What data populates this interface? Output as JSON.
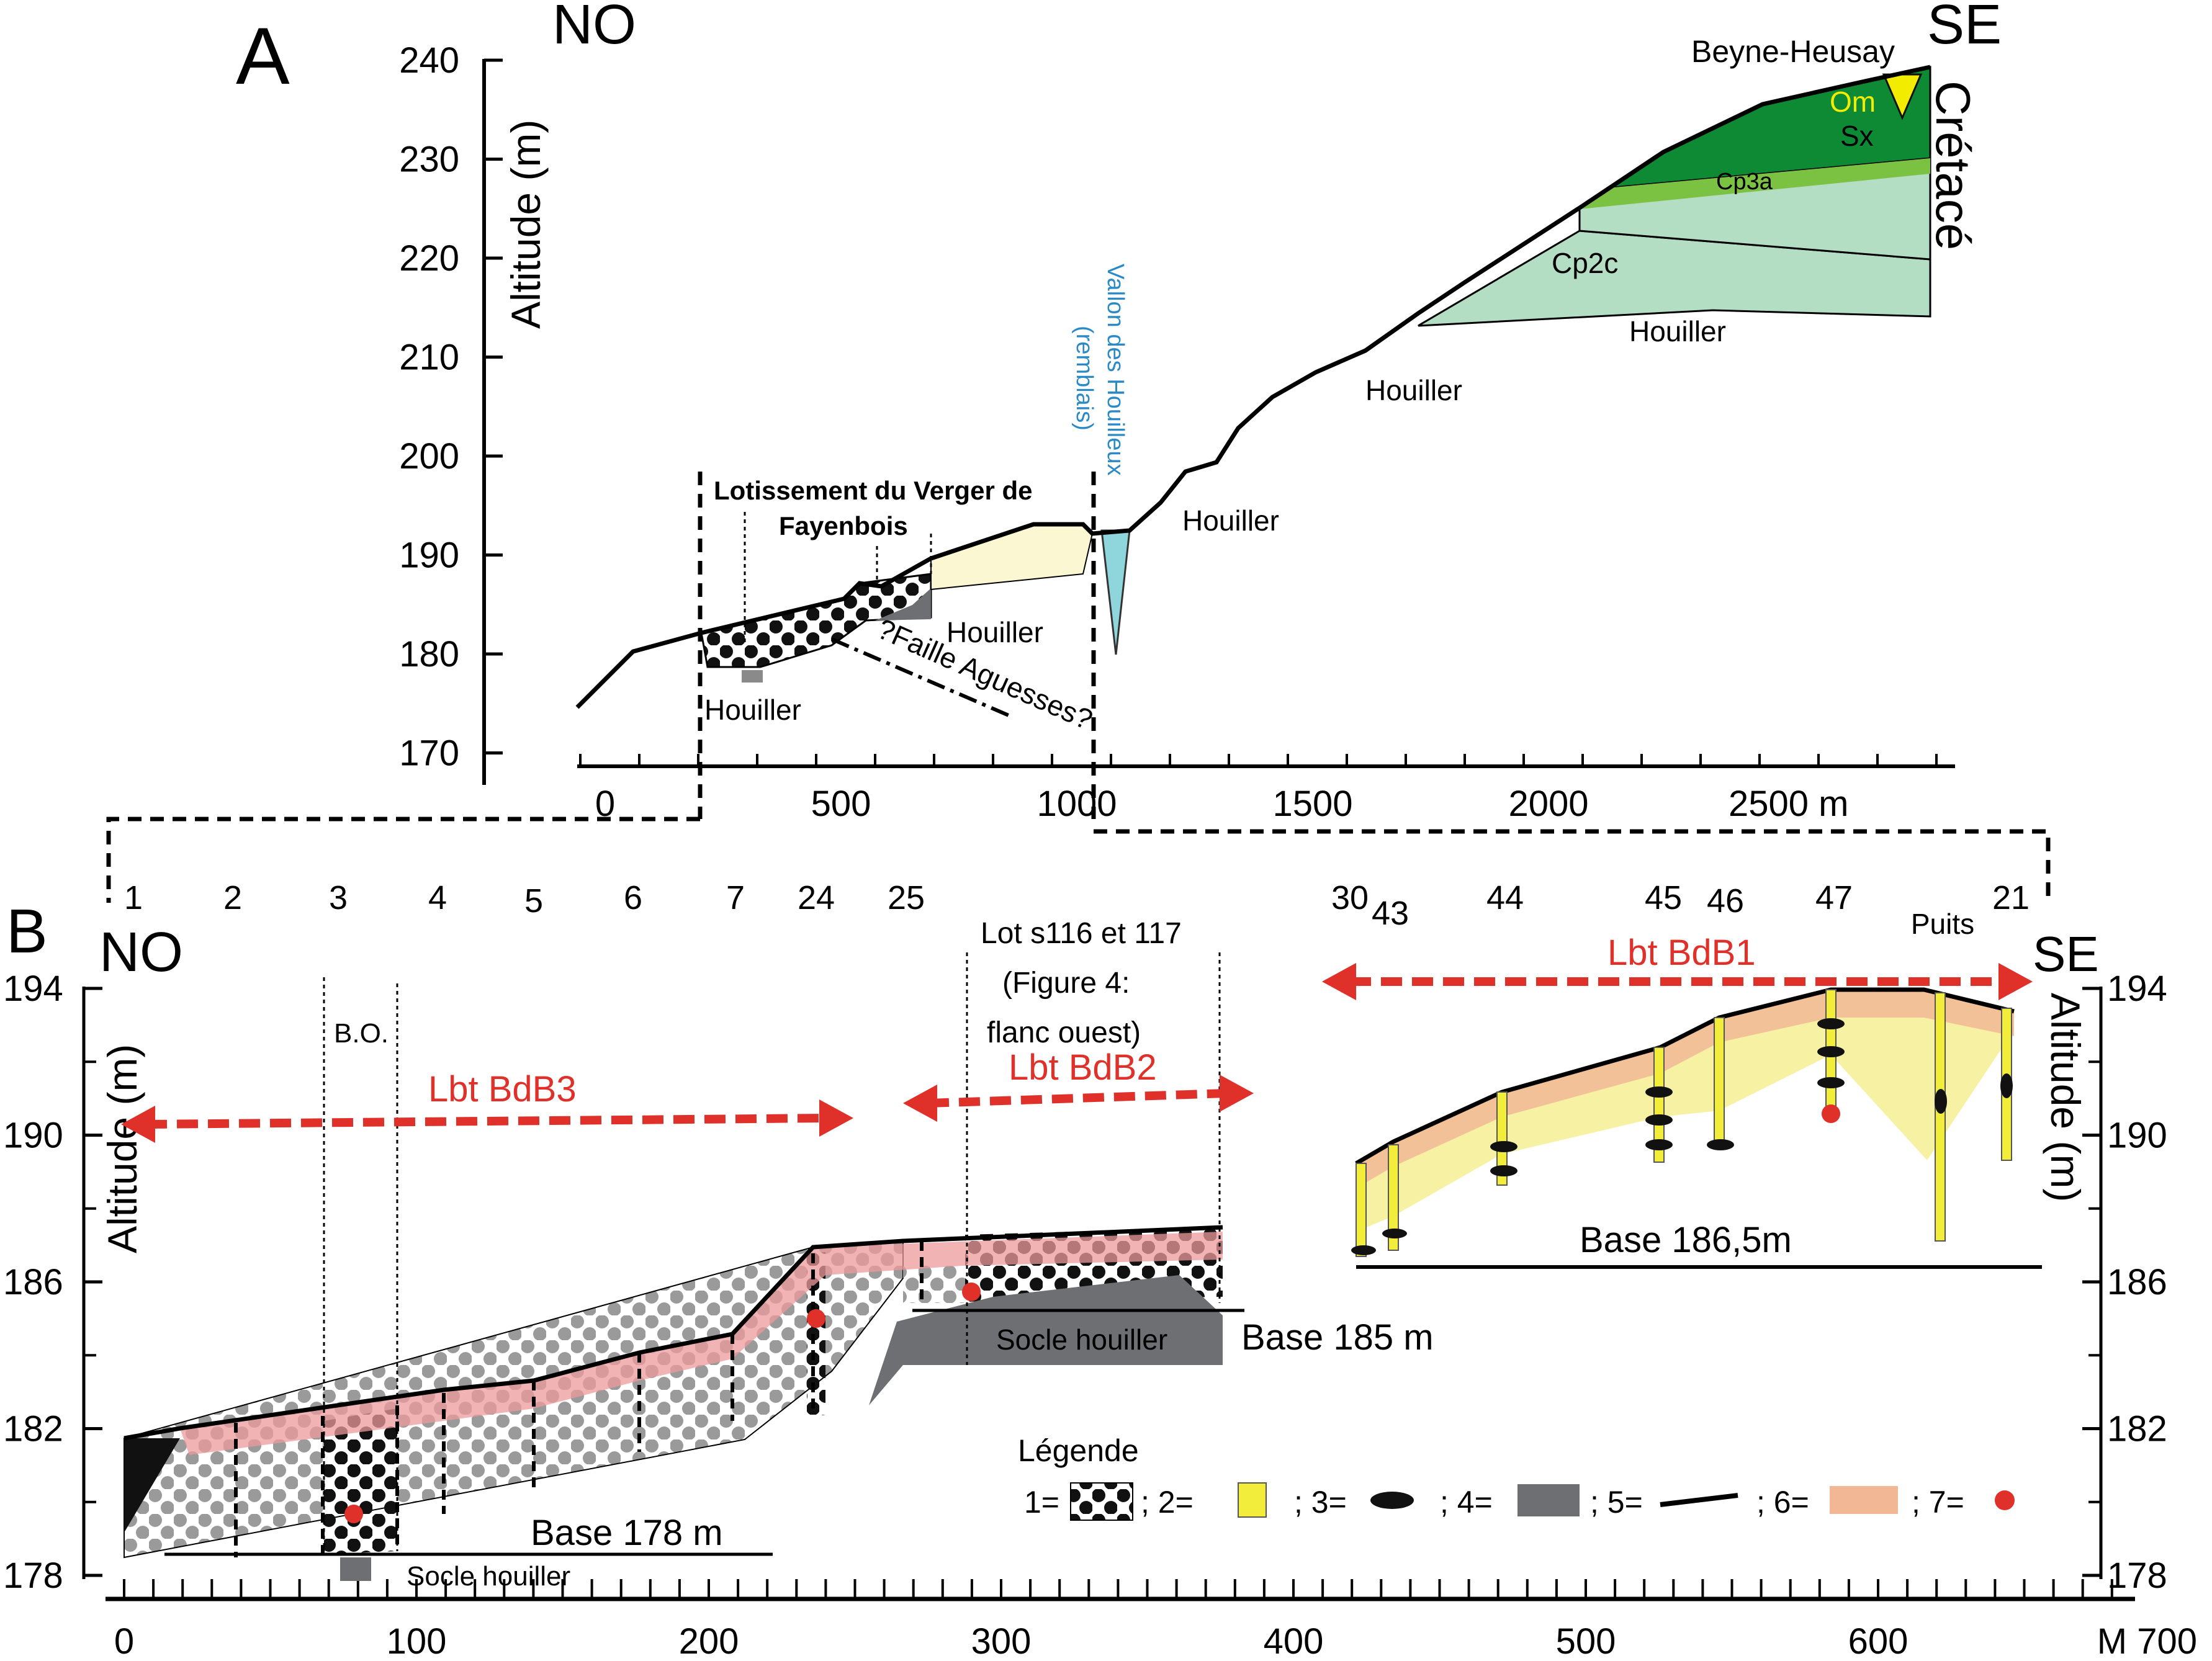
{
  "panel_a": {
    "letter": "A",
    "dir_left": "NO",
    "dir_right": "SE",
    "ylabel": "Altitude (m)",
    "y_ticks": [
      "240",
      "230",
      "220",
      "210",
      "200",
      "190",
      "180",
      "170"
    ],
    "x_ticks": [
      "0",
      "500",
      "1000",
      "1500",
      "2000",
      "2500 m"
    ],
    "labels": {
      "beyne": "Beyne-Heusay",
      "cretace": "Crétacé",
      "om": "Om",
      "sx": "Sx",
      "cp3a": "Cp3a",
      "cp2c": "Cp2c",
      "houiller": "Houiller",
      "lotissement_1": "Lotissement du Verger de",
      "lotissement_2": "Fayenbois",
      "faille": "?Faille Aguesses?",
      "vallon_1": "Vallon des Houilleux",
      "vallon_2": "(remblais)"
    },
    "colors": {
      "sx": "#0e8a34",
      "cp3a": "#7cc242",
      "cp2c": "#b3dec3",
      "vallon": "#8fd6dc",
      "om": "#f2ec00"
    }
  },
  "panel_b": {
    "letter": "B",
    "dir_left": "NO",
    "dir_right": "SE",
    "ylabel": "Altitude (m)",
    "y_ticks": [
      "194",
      "190",
      "186",
      "182",
      "178"
    ],
    "x_ticks": [
      "0",
      "100",
      "200",
      "300",
      "400",
      "500",
      "600",
      "M 700"
    ],
    "well_numbers": [
      "1",
      "2",
      "3",
      "4",
      "5",
      "6",
      "7",
      "24",
      "25",
      "30",
      "43",
      "44",
      "45",
      "46",
      "47",
      "Puits",
      "21"
    ],
    "labels": {
      "bo": "B.O.",
      "lbt_bdb3": "Lbt BdB3",
      "lbt_bdb2": "Lbt BdB2",
      "lbt_bdb1": "Lbt BdB1",
      "lots_1": "Lot s116  et 117",
      "lots_2": "(Figure 4:",
      "lots_3": "flanc ouest)",
      "base178": "Base 178 m",
      "base185": "Base 185 m",
      "base186": "Base 186,5m",
      "socle_houiller_1": "Socle houiller",
      "socle_houiller_2": "Socle houiller"
    },
    "legend": {
      "title": "Légende",
      "items": [
        "1=",
        "; 2=",
        "; 3=",
        "; 4=",
        "; 5=",
        "; 6=",
        "; 7="
      ]
    },
    "colors": {
      "lbt": "#e0302a",
      "yellow": "#f2ec3a",
      "pale_yellow": "#f6f09a",
      "orange": "#f2b896",
      "grey": "#6d6f72",
      "red_dot": "#e0302a"
    }
  }
}
